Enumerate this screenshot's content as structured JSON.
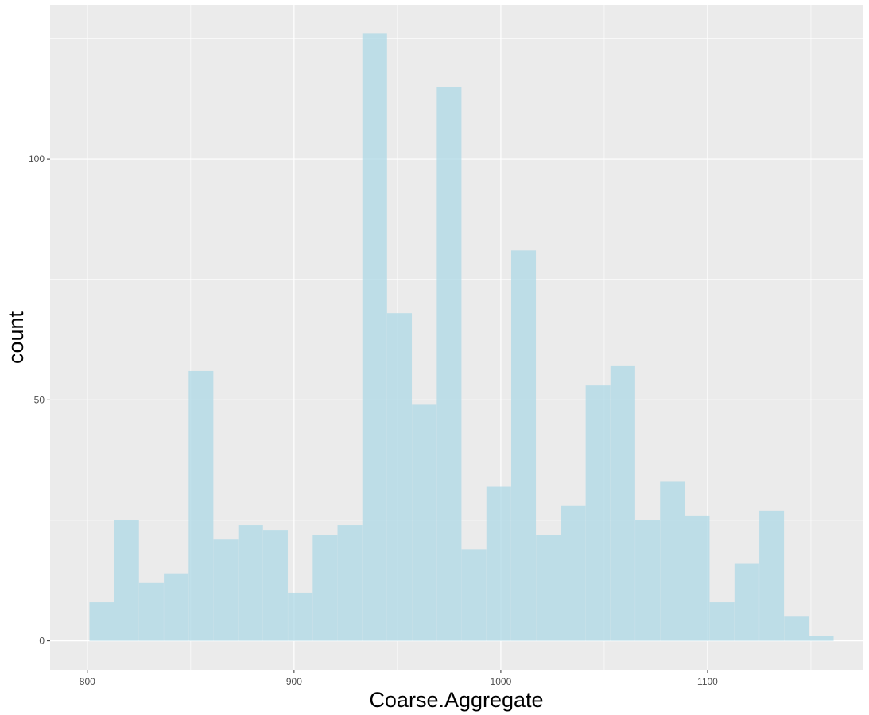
{
  "chart_data": {
    "type": "bar",
    "subtype": "histogram",
    "title": "",
    "xlabel": "Coarse.Aggregate",
    "ylabel": "count",
    "xlim": [
      782,
      1175
    ],
    "ylim": [
      -6,
      132
    ],
    "x_ticks": [
      800,
      900,
      1000,
      1100
    ],
    "y_ticks": [
      0,
      50,
      100
    ],
    "grid": true,
    "legend": "none",
    "colors": {
      "panel_background": "#ebebeb",
      "grid_line": "#ffffff",
      "bar_fill": "#add8e6"
    },
    "bin_width": 11.94,
    "bins": [
      {
        "x": 807,
        "count": 8
      },
      {
        "x": 819,
        "count": 25
      },
      {
        "x": 831,
        "count": 12
      },
      {
        "x": 843,
        "count": 14
      },
      {
        "x": 855,
        "count": 56
      },
      {
        "x": 867,
        "count": 21
      },
      {
        "x": 879,
        "count": 24
      },
      {
        "x": 891,
        "count": 23
      },
      {
        "x": 903,
        "count": 10
      },
      {
        "x": 915,
        "count": 22
      },
      {
        "x": 927,
        "count": 24
      },
      {
        "x": 939,
        "count": 126
      },
      {
        "x": 951,
        "count": 68
      },
      {
        "x": 963,
        "count": 49
      },
      {
        "x": 975,
        "count": 115
      },
      {
        "x": 987,
        "count": 19
      },
      {
        "x": 999,
        "count": 32
      },
      {
        "x": 1011,
        "count": 81
      },
      {
        "x": 1023,
        "count": 22
      },
      {
        "x": 1035,
        "count": 28
      },
      {
        "x": 1047,
        "count": 53
      },
      {
        "x": 1059,
        "count": 57
      },
      {
        "x": 1071,
        "count": 25
      },
      {
        "x": 1083,
        "count": 33
      },
      {
        "x": 1095,
        "count": 26
      },
      {
        "x": 1107,
        "count": 8
      },
      {
        "x": 1119,
        "count": 16
      },
      {
        "x": 1131,
        "count": 27
      },
      {
        "x": 1143,
        "count": 5
      },
      {
        "x": 1155,
        "count": 1
      }
    ]
  }
}
